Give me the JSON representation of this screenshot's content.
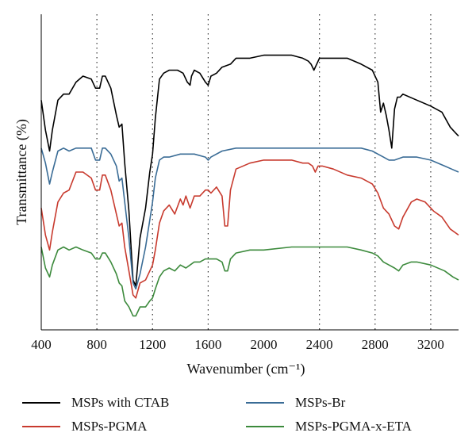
{
  "chart_data": {
    "type": "line",
    "xlabel": "Wavenumber (cm⁻¹)",
    "ylabel": "Transmittance (%)",
    "xlim": [
      400,
      3400
    ],
    "ylim": [
      0,
      100
    ],
    "xticks": [
      400,
      800,
      1200,
      1600,
      2000,
      2400,
      2800,
      3200
    ],
    "grid_x": [
      800,
      1200,
      1600,
      2400,
      2800,
      3200
    ],
    "legend_position": "bottom",
    "series": [
      {
        "name": "MSPs with CTAB",
        "color": "#000000",
        "points": [
          [
            400,
            74
          ],
          [
            430,
            64
          ],
          [
            460,
            57
          ],
          [
            480,
            64
          ],
          [
            520,
            74
          ],
          [
            560,
            76
          ],
          [
            600,
            76
          ],
          [
            650,
            80
          ],
          [
            700,
            82
          ],
          [
            760,
            81
          ],
          [
            790,
            78
          ],
          [
            820,
            78
          ],
          [
            840,
            82
          ],
          [
            860,
            82
          ],
          [
            900,
            78
          ],
          [
            940,
            69
          ],
          [
            960,
            65
          ],
          [
            980,
            66
          ],
          [
            1000,
            53
          ],
          [
            1030,
            37
          ],
          [
            1060,
            14
          ],
          [
            1080,
            12
          ],
          [
            1110,
            28
          ],
          [
            1150,
            38
          ],
          [
            1180,
            50
          ],
          [
            1200,
            56
          ],
          [
            1220,
            68
          ],
          [
            1250,
            81
          ],
          [
            1280,
            83
          ],
          [
            1320,
            84
          ],
          [
            1380,
            84
          ],
          [
            1420,
            83
          ],
          [
            1450,
            80
          ],
          [
            1470,
            79
          ],
          [
            1480,
            82
          ],
          [
            1500,
            84
          ],
          [
            1540,
            83
          ],
          [
            1580,
            80
          ],
          [
            1600,
            79
          ],
          [
            1620,
            82
          ],
          [
            1660,
            83
          ],
          [
            1700,
            85
          ],
          [
            1760,
            86
          ],
          [
            1800,
            88
          ],
          [
            1900,
            88
          ],
          [
            2000,
            89
          ],
          [
            2100,
            89
          ],
          [
            2200,
            89
          ],
          [
            2280,
            88
          ],
          [
            2320,
            87
          ],
          [
            2340,
            86
          ],
          [
            2360,
            84
          ],
          [
            2380,
            86
          ],
          [
            2400,
            88
          ],
          [
            2500,
            88
          ],
          [
            2600,
            88
          ],
          [
            2700,
            86
          ],
          [
            2780,
            84
          ],
          [
            2820,
            80
          ],
          [
            2840,
            70
          ],
          [
            2860,
            73
          ],
          [
            2880,
            69
          ],
          [
            2900,
            64
          ],
          [
            2920,
            58
          ],
          [
            2940,
            71
          ],
          [
            2960,
            75
          ],
          [
            2980,
            75
          ],
          [
            3000,
            76
          ],
          [
            3100,
            74
          ],
          [
            3200,
            72
          ],
          [
            3280,
            70
          ],
          [
            3340,
            65
          ],
          [
            3380,
            63
          ],
          [
            3400,
            62
          ]
        ]
      },
      {
        "name": "MSPs-Br",
        "color": "#3a6c96",
        "points": [
          [
            400,
            58
          ],
          [
            430,
            53
          ],
          [
            460,
            46
          ],
          [
            480,
            50
          ],
          [
            520,
            57
          ],
          [
            560,
            58
          ],
          [
            600,
            57
          ],
          [
            650,
            58
          ],
          [
            700,
            58
          ],
          [
            760,
            58
          ],
          [
            790,
            54
          ],
          [
            820,
            54
          ],
          [
            840,
            58
          ],
          [
            860,
            58
          ],
          [
            900,
            56
          ],
          [
            940,
            52
          ],
          [
            960,
            47
          ],
          [
            980,
            48
          ],
          [
            1000,
            40
          ],
          [
            1030,
            28
          ],
          [
            1060,
            13
          ],
          [
            1080,
            11
          ],
          [
            1110,
            16
          ],
          [
            1150,
            25
          ],
          [
            1180,
            34
          ],
          [
            1200,
            40
          ],
          [
            1220,
            48
          ],
          [
            1250,
            54
          ],
          [
            1280,
            55
          ],
          [
            1320,
            55
          ],
          [
            1400,
            56
          ],
          [
            1500,
            56
          ],
          [
            1580,
            55
          ],
          [
            1600,
            54
          ],
          [
            1620,
            55
          ],
          [
            1700,
            57
          ],
          [
            1800,
            58
          ],
          [
            2000,
            58
          ],
          [
            2200,
            58
          ],
          [
            2400,
            58
          ],
          [
            2600,
            58
          ],
          [
            2700,
            58
          ],
          [
            2780,
            57
          ],
          [
            2820,
            56
          ],
          [
            2860,
            55
          ],
          [
            2900,
            54
          ],
          [
            2940,
            54
          ],
          [
            3000,
            55
          ],
          [
            3100,
            55
          ],
          [
            3200,
            54
          ],
          [
            3300,
            52
          ],
          [
            3350,
            51
          ],
          [
            3400,
            50
          ]
        ]
      },
      {
        "name": "MSPs-PGMA",
        "color": "#c83a2e",
        "points": [
          [
            400,
            38
          ],
          [
            430,
            29
          ],
          [
            460,
            24
          ],
          [
            480,
            30
          ],
          [
            520,
            40
          ],
          [
            560,
            43
          ],
          [
            600,
            44
          ],
          [
            650,
            50
          ],
          [
            700,
            50
          ],
          [
            760,
            48
          ],
          [
            790,
            44
          ],
          [
            820,
            44
          ],
          [
            840,
            49
          ],
          [
            860,
            49
          ],
          [
            900,
            44
          ],
          [
            940,
            36
          ],
          [
            960,
            32
          ],
          [
            980,
            33
          ],
          [
            1000,
            25
          ],
          [
            1030,
            17
          ],
          [
            1060,
            9
          ],
          [
            1080,
            8
          ],
          [
            1110,
            13
          ],
          [
            1150,
            14
          ],
          [
            1180,
            17
          ],
          [
            1200,
            19
          ],
          [
            1220,
            24
          ],
          [
            1250,
            33
          ],
          [
            1280,
            37
          ],
          [
            1320,
            39
          ],
          [
            1360,
            36
          ],
          [
            1400,
            41
          ],
          [
            1420,
            39
          ],
          [
            1440,
            42
          ],
          [
            1470,
            38
          ],
          [
            1500,
            42
          ],
          [
            1540,
            42
          ],
          [
            1580,
            44
          ],
          [
            1600,
            44
          ],
          [
            1620,
            43
          ],
          [
            1660,
            45
          ],
          [
            1700,
            42
          ],
          [
            1720,
            32
          ],
          [
            1740,
            32
          ],
          [
            1760,
            44
          ],
          [
            1800,
            51
          ],
          [
            1900,
            53
          ],
          [
            2000,
            54
          ],
          [
            2100,
            54
          ],
          [
            2200,
            54
          ],
          [
            2280,
            53
          ],
          [
            2320,
            53
          ],
          [
            2350,
            52
          ],
          [
            2370,
            50
          ],
          [
            2390,
            52
          ],
          [
            2420,
            52
          ],
          [
            2500,
            51
          ],
          [
            2600,
            49
          ],
          [
            2700,
            48
          ],
          [
            2780,
            46
          ],
          [
            2820,
            43
          ],
          [
            2860,
            38
          ],
          [
            2900,
            36
          ],
          [
            2940,
            32
          ],
          [
            2970,
            31
          ],
          [
            3000,
            35
          ],
          [
            3060,
            40
          ],
          [
            3100,
            41
          ],
          [
            3160,
            40
          ],
          [
            3220,
            37
          ],
          [
            3280,
            35
          ],
          [
            3340,
            31
          ],
          [
            3400,
            29
          ]
        ]
      },
      {
        "name": "MSPs-PGMA-x-ETA",
        "color": "#3c8a3c",
        "points": [
          [
            400,
            25
          ],
          [
            430,
            18
          ],
          [
            460,
            15
          ],
          [
            480,
            19
          ],
          [
            520,
            24
          ],
          [
            560,
            25
          ],
          [
            600,
            24
          ],
          [
            650,
            25
          ],
          [
            700,
            24
          ],
          [
            760,
            23
          ],
          [
            790,
            21
          ],
          [
            820,
            21
          ],
          [
            840,
            23
          ],
          [
            860,
            23
          ],
          [
            900,
            20
          ],
          [
            940,
            16
          ],
          [
            960,
            13
          ],
          [
            980,
            12
          ],
          [
            1000,
            7
          ],
          [
            1030,
            5
          ],
          [
            1060,
            2
          ],
          [
            1080,
            2
          ],
          [
            1110,
            5
          ],
          [
            1150,
            5
          ],
          [
            1180,
            7
          ],
          [
            1200,
            8
          ],
          [
            1220,
            11
          ],
          [
            1250,
            15
          ],
          [
            1280,
            17
          ],
          [
            1320,
            18
          ],
          [
            1360,
            17
          ],
          [
            1400,
            19
          ],
          [
            1440,
            18
          ],
          [
            1470,
            19
          ],
          [
            1500,
            20
          ],
          [
            1540,
            20
          ],
          [
            1580,
            21
          ],
          [
            1600,
            21
          ],
          [
            1660,
            21
          ],
          [
            1700,
            20
          ],
          [
            1720,
            17
          ],
          [
            1740,
            17
          ],
          [
            1760,
            21
          ],
          [
            1800,
            23
          ],
          [
            1900,
            24
          ],
          [
            2000,
            24
          ],
          [
            2200,
            25
          ],
          [
            2400,
            25
          ],
          [
            2600,
            25
          ],
          [
            2700,
            24
          ],
          [
            2780,
            23
          ],
          [
            2820,
            22
          ],
          [
            2860,
            20
          ],
          [
            2900,
            19
          ],
          [
            2940,
            18
          ],
          [
            2970,
            17
          ],
          [
            3000,
            19
          ],
          [
            3060,
            20
          ],
          [
            3100,
            20
          ],
          [
            3200,
            19
          ],
          [
            3300,
            17
          ],
          [
            3360,
            15
          ],
          [
            3400,
            14
          ]
        ]
      }
    ]
  }
}
